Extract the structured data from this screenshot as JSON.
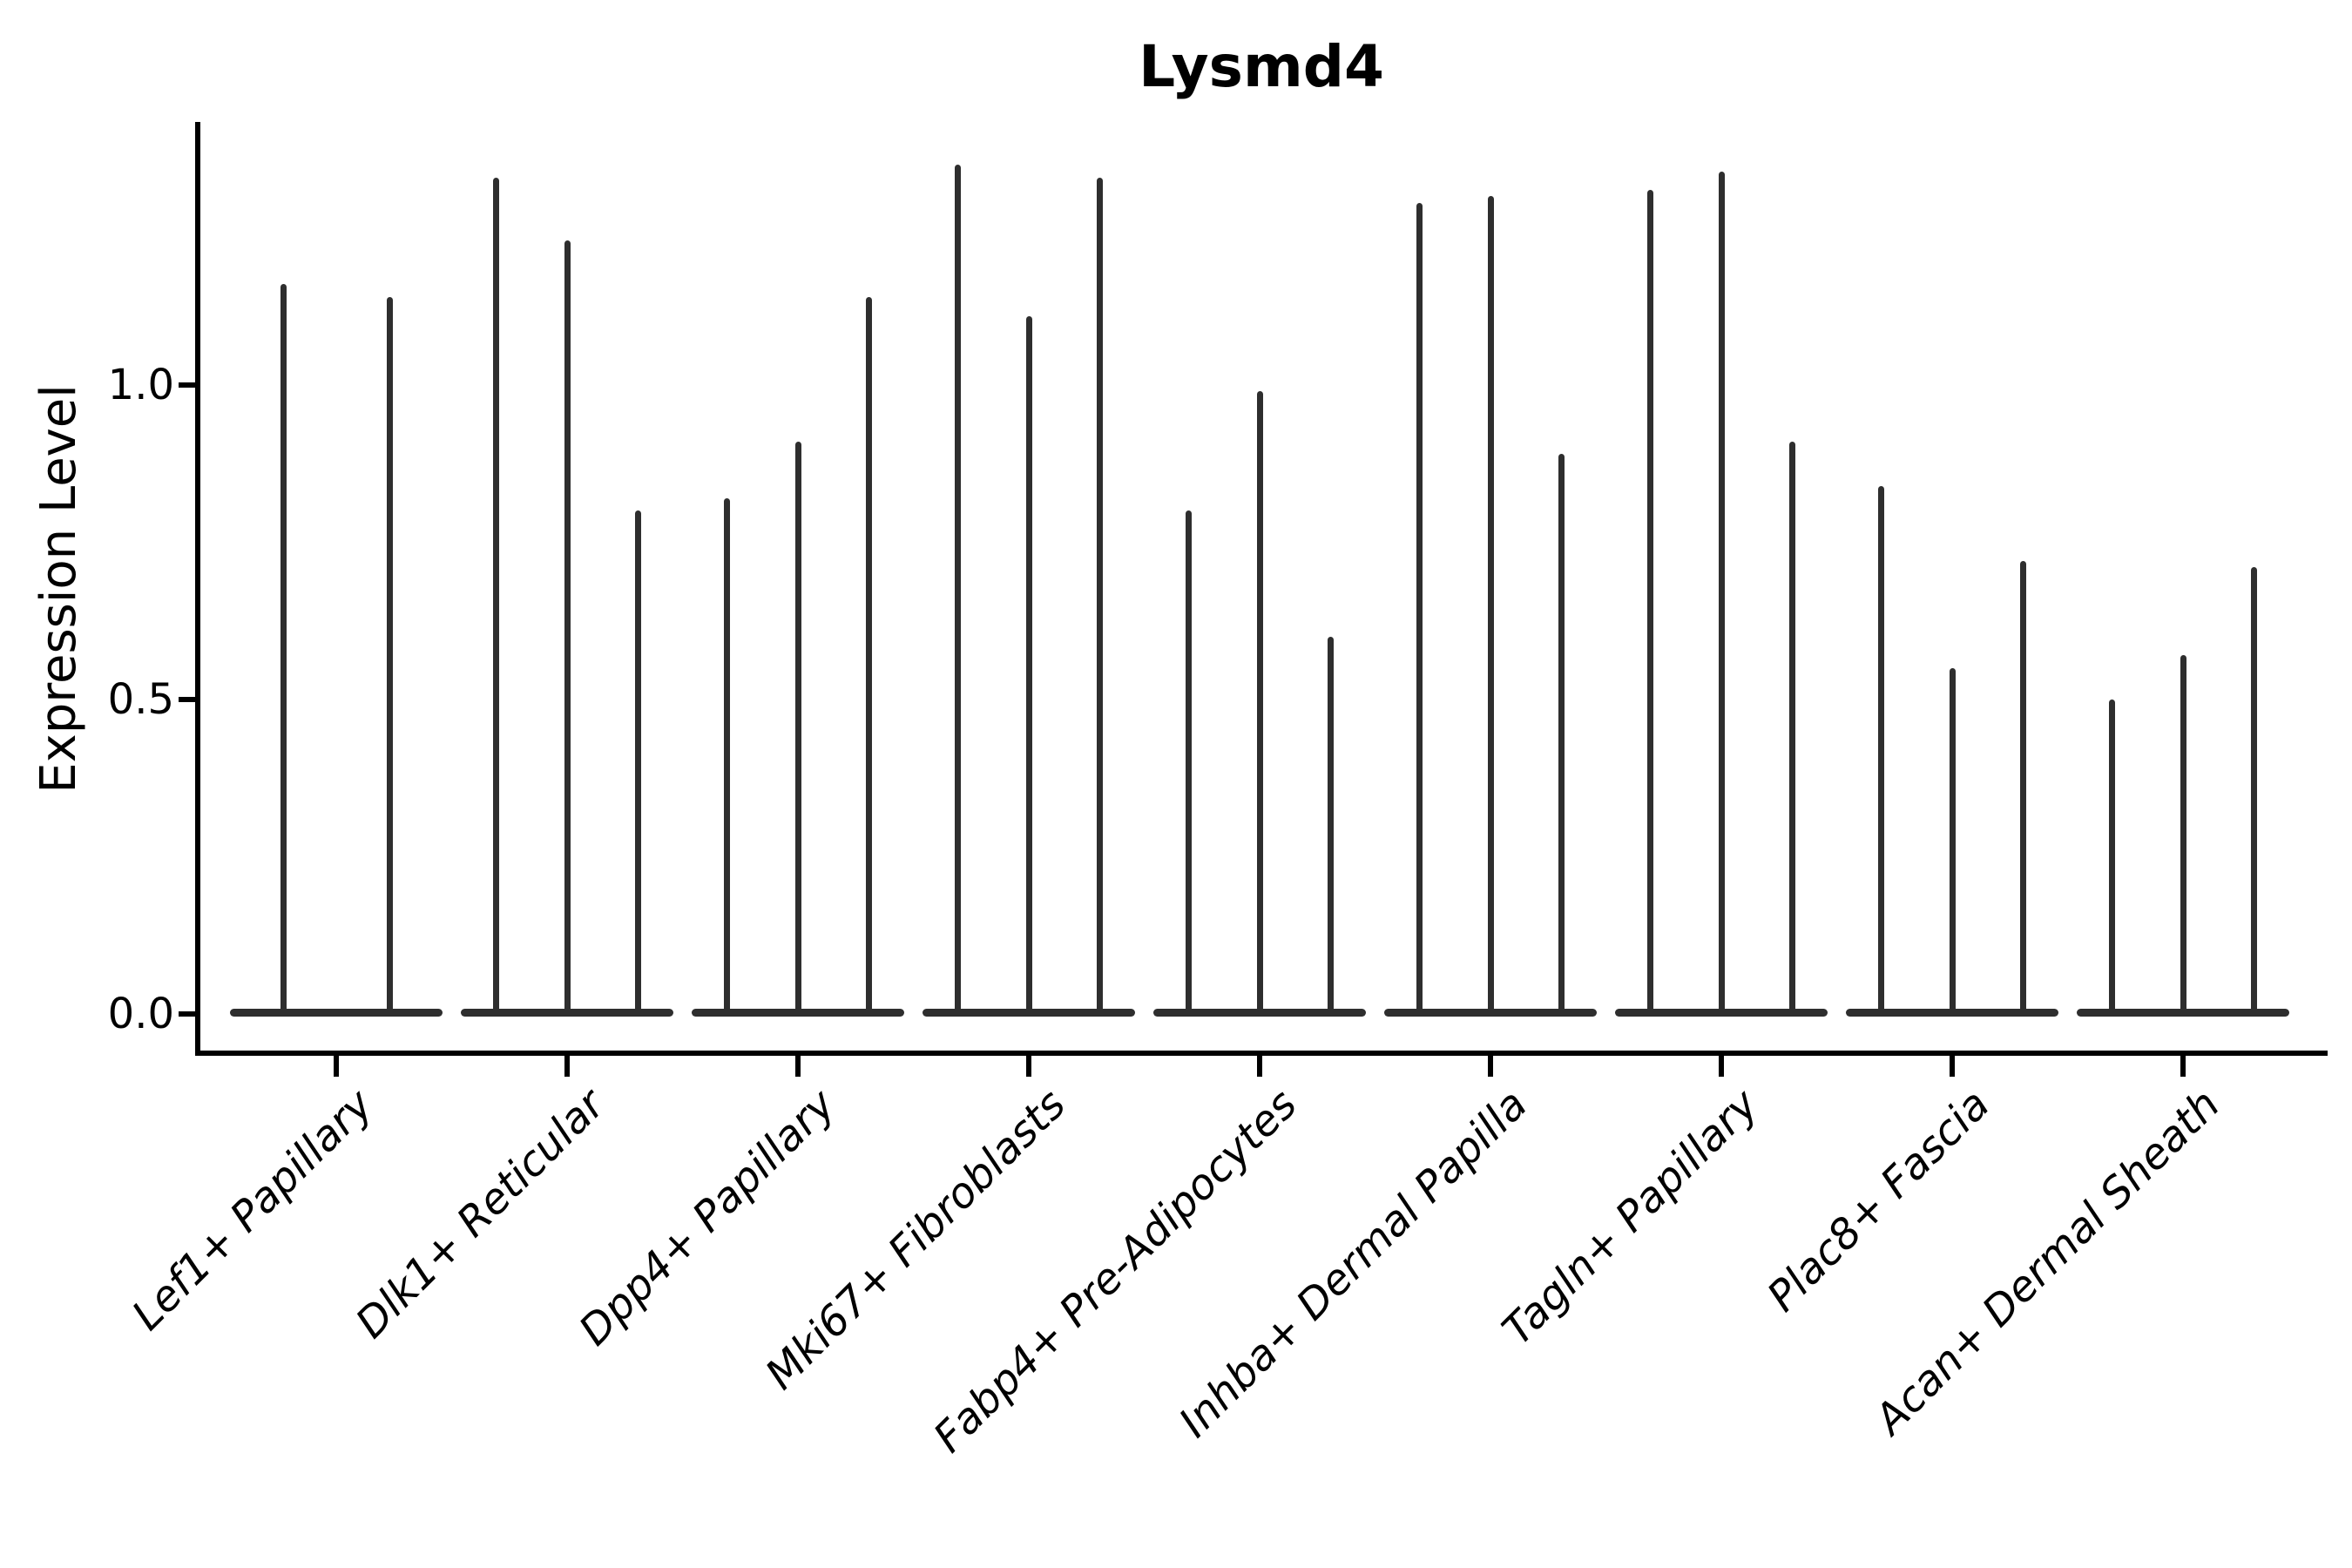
{
  "figure": {
    "background": "#ffffff"
  },
  "chart_data": {
    "type": "violin",
    "title": "Lysmd4",
    "ylabel": "Expression Level",
    "xlabel": "",
    "grid": false,
    "legend": null,
    "ylim": [
      -0.06,
      1.42
    ],
    "yticks": [
      {
        "value": 0.0,
        "label": "0.0"
      },
      {
        "value": 0.5,
        "label": "0.5"
      },
      {
        "value": 1.0,
        "label": "1.0"
      }
    ],
    "violin_color": "#2e2e2e",
    "axis_color": "#000000",
    "x_tick_label_rotation_deg": 45,
    "x_tick_label_style": "italic",
    "categories": [
      "Lef1+ Papillary",
      "Dlk1+ Reticular",
      "Dpp4+ Papillary",
      "Mki67+ Fibroblasts",
      "Fabp4+ Pre-Adipocytes",
      "Inhba+ Dermal Papilla",
      "Tagln+ Papillary",
      "Plac8+ Fascia",
      "Acan+ Dermal Sheath"
    ],
    "series": [
      {
        "category": "Lef1+ Papillary",
        "violin_peaks": [
          1.16,
          1.14
        ]
      },
      {
        "category": "Dlk1+ Reticular",
        "violin_peaks": [
          1.33,
          1.23,
          0.8
        ]
      },
      {
        "category": "Dpp4+ Papillary",
        "violin_peaks": [
          0.82,
          0.91,
          1.14
        ]
      },
      {
        "category": "Mki67+ Fibroblasts",
        "violin_peaks": [
          1.35,
          1.11,
          1.33
        ]
      },
      {
        "category": "Fabp4+ Pre-Adipocytes",
        "violin_peaks": [
          0.8,
          0.99,
          0.6
        ]
      },
      {
        "category": "Inhba+ Dermal Papilla",
        "violin_peaks": [
          1.29,
          1.3,
          0.89
        ]
      },
      {
        "category": "Tagln+ Papillary",
        "violin_peaks": [
          1.31,
          1.34,
          0.91
        ]
      },
      {
        "category": "Plac8+ Fascia",
        "violin_peaks": [
          0.84,
          0.55,
          0.72
        ]
      },
      {
        "category": "Acan+ Dermal Sheath",
        "violin_peaks": [
          0.5,
          0.57,
          0.71
        ]
      }
    ],
    "violin_density_note": "Each violin is a very thin spike rising from a flat dense base at expression 0 up to its peak value"
  }
}
